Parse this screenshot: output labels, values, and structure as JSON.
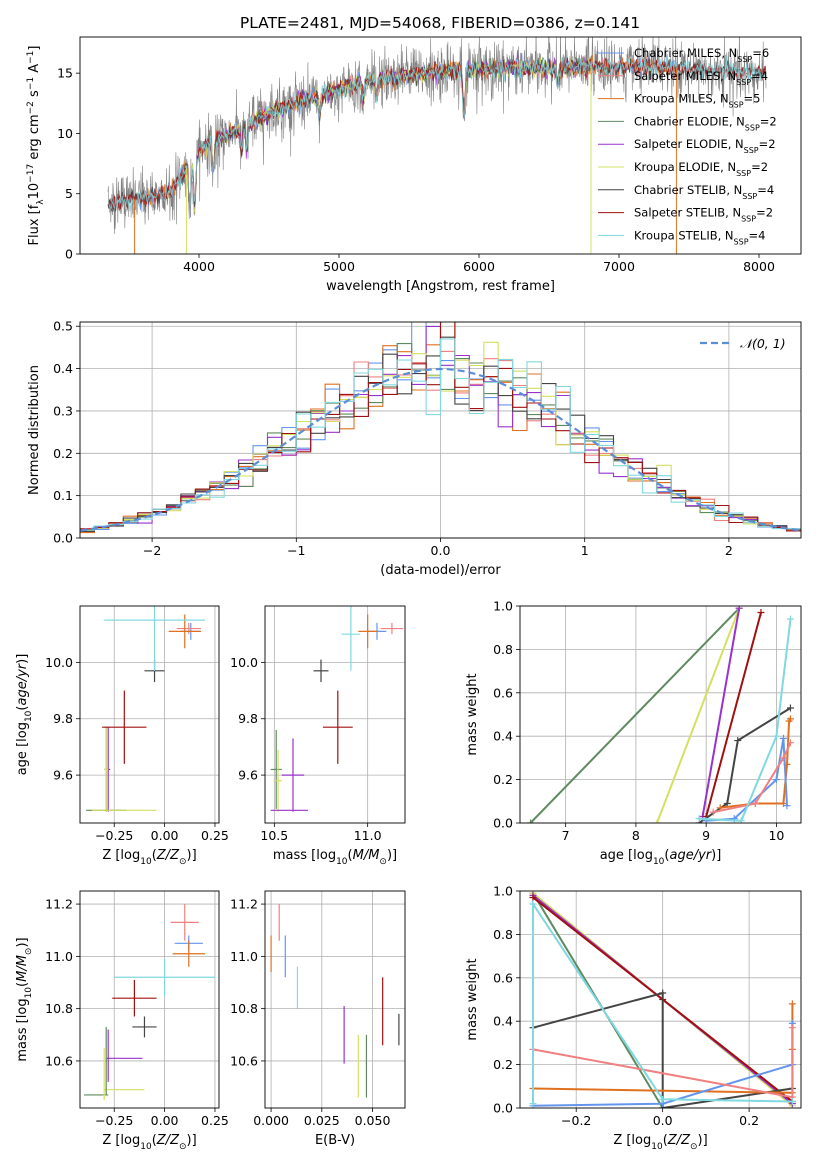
{
  "figure": {
    "suptitle": "PLATE=2481, MJD=54068, FIBERID=0386, z=0.141"
  },
  "colors": {
    "chabrier_miles": "#6495ED",
    "salpeter_miles": "#F08080",
    "kroupa_miles": "#E07020",
    "chabrier_elodie": "#5F8A5F",
    "salpeter_elodie": "#9932CC",
    "kroupa_elodie": "#D4E060",
    "chabrier_stelib": "#444444",
    "salpeter_stelib": "#A01010",
    "kroupa_stelib": "#80D8E0",
    "normal": "#5B8ED6"
  },
  "chart_data": [
    {
      "id": "spectrum",
      "type": "line",
      "xlabel": "wavelength [Angstrom, rest frame]",
      "ylabel": "Flux [f_λ 10^{-17} erg cm^{-2} s^{-1} A^{-1}]",
      "xlim": [
        3150,
        8300
      ],
      "ylim": [
        0,
        18
      ],
      "xticks": [
        4000,
        5000,
        6000,
        7000,
        8000
      ],
      "yticks": [
        0,
        5,
        10,
        15
      ],
      "grid": false,
      "legend_loc": "upper right",
      "legend": [
        {
          "key": "chabrier_miles",
          "label": "Chabrier MILES, N",
          "sub": "SSP",
          "suffix": "=6"
        },
        {
          "key": "salpeter_miles",
          "label": "Salpeter MILES, N",
          "sub": "SSP",
          "suffix": "=4"
        },
        {
          "key": "kroupa_miles",
          "label": "Kroupa MILES, N",
          "sub": "SSP",
          "suffix": "=5"
        },
        {
          "key": "chabrier_elodie",
          "label": "Chabrier ELODIE, N",
          "sub": "SSP",
          "suffix": "=2"
        },
        {
          "key": "salpeter_elodie",
          "label": "Salpeter ELODIE, N",
          "sub": "SSP",
          "suffix": "=2"
        },
        {
          "key": "kroupa_elodie",
          "label": "Kroupa ELODIE, N",
          "sub": "SSP",
          "suffix": "=2"
        },
        {
          "key": "chabrier_stelib",
          "label": "Chabrier STELIB, N",
          "sub": "SSP",
          "suffix": "=4"
        },
        {
          "key": "salpeter_stelib",
          "label": "Salpeter STELIB, N",
          "sub": "SSP",
          "suffix": "=2"
        },
        {
          "key": "kroupa_stelib",
          "label": "Kroupa STELIB, N",
          "sub": "SSP",
          "suffix": "=4"
        }
      ],
      "continuum": {
        "x": [
          3350,
          3600,
          3800,
          3950,
          4050,
          4300,
          4600,
          4900,
          5200,
          5500,
          5800,
          6200,
          6600,
          7000,
          7400,
          7800,
          8050
        ],
        "y": [
          4.2,
          4.6,
          5.2,
          7.8,
          9.0,
          10.5,
          12.2,
          13.3,
          14.4,
          14.8,
          15.2,
          15.4,
          15.5,
          15.6,
          15.4,
          15.2,
          15.0
        ]
      }
    },
    {
      "id": "residuals",
      "type": "histogram",
      "xlabel": "(data-model)/error",
      "ylabel": "Normed distribution",
      "xlim": [
        -2.5,
        2.5
      ],
      "ylim": [
        0,
        0.51
      ],
      "xticks": [
        -2,
        -1,
        0,
        1,
        2
      ],
      "yticks": [
        0.0,
        0.1,
        0.2,
        0.3,
        0.4,
        0.5
      ],
      "grid": true,
      "legend_loc": "upper right",
      "normal_label": "𝒩(0, 1)",
      "bin_width": 0.1
    },
    {
      "id": "age_vs_Z",
      "type": "errorbar",
      "xlabel": "Z [log10(Z/Z⊙)]",
      "ylabel": "age  [log10(age/yr)]",
      "xlim": [
        -0.42,
        0.27
      ],
      "ylim": [
        9.43,
        10.2
      ],
      "xticks": [
        -0.25,
        0.0,
        0.25
      ],
      "yticks": [
        9.6,
        9.8,
        10.0
      ],
      "grid": true,
      "points": [
        {
          "key": "chabrier_miles",
          "x": 0.13,
          "xerr": 0.05,
          "y": 10.11,
          "yerr": 0.03
        },
        {
          "key": "salpeter_miles",
          "x": 0.12,
          "xerr": 0.06,
          "y": 10.12,
          "yerr": 0.02
        },
        {
          "key": "kroupa_miles",
          "x": 0.1,
          "xerr": 0.08,
          "y": 10.11,
          "yerr": 0.06
        },
        {
          "key": "chabrier_elodie",
          "x": -0.29,
          "xerr": 0.01,
          "y": 9.62,
          "yerr": 0.15
        },
        {
          "key": "salpeter_elodie",
          "x": -0.28,
          "xerr": 0.01,
          "y": 9.62,
          "yerr": 0.15
        },
        {
          "key": "kroupa_elodie",
          "x": -0.29,
          "xerr": 0.01,
          "y": 9.62,
          "yerr": 0.15
        },
        {
          "key": "chabrier_stelib",
          "x": -0.05,
          "xerr": 0.05,
          "y": 9.97,
          "yerr": 0.04
        },
        {
          "key": "salpeter_stelib",
          "x": -0.2,
          "xerr": 0.11,
          "y": 9.77,
          "yerr": 0.13
        },
        {
          "key": "kroupa_stelib",
          "x": -0.05,
          "xerr": 0.25,
          "y": 10.15,
          "yerr": 0.18
        },
        {
          "key": "chabrier_elodie",
          "x": -0.29,
          "xerr": 0.1,
          "y": 9.475,
          "yerr": 0.0
        },
        {
          "key": "kroupa_elodie",
          "x": -0.2,
          "xerr": 0.16,
          "y": 9.475,
          "yerr": 0.0
        }
      ]
    },
    {
      "id": "age_vs_mass",
      "type": "errorbar",
      "xlabel": "mass [log10(M/M⊙)]",
      "ylabel": "",
      "xlim": [
        10.45,
        11.2
      ],
      "ylim": [
        9.43,
        10.2
      ],
      "xticks": [
        10.5,
        11.0
      ],
      "yticks": [
        9.6,
        9.8,
        10.0
      ],
      "grid": true,
      "points": [
        {
          "key": "chabrier_miles",
          "x": 11.05,
          "xerr": 0.05,
          "y": 10.11,
          "yerr": 0.03
        },
        {
          "key": "salpeter_miles",
          "x": 11.13,
          "xerr": 0.06,
          "y": 10.12,
          "yerr": 0.02
        },
        {
          "key": "kroupa_miles",
          "x": 11.0,
          "xerr": 0.05,
          "y": 10.11,
          "yerr": 0.06
        },
        {
          "key": "chabrier_elodie",
          "x": 10.51,
          "xerr": 0.03,
          "y": 9.62,
          "yerr": 0.14
        },
        {
          "key": "salpeter_elodie",
          "x": 10.6,
          "xerr": 0.06,
          "y": 9.6,
          "yerr": 0.13
        },
        {
          "key": "kroupa_elodie",
          "x": 10.52,
          "xerr": 0.02,
          "y": 9.58,
          "yerr": 0.11
        },
        {
          "key": "chabrier_stelib",
          "x": 10.75,
          "xerr": 0.04,
          "y": 9.97,
          "yerr": 0.04
        },
        {
          "key": "salpeter_stelib",
          "x": 10.84,
          "xerr": 0.08,
          "y": 9.77,
          "yerr": 0.13
        },
        {
          "key": "kroupa_stelib",
          "x": 10.91,
          "xerr": 0.05,
          "y": 10.1,
          "yerr": 0.13
        },
        {
          "key": "salpeter_elodie",
          "x": 10.58,
          "xerr": 0.1,
          "y": 9.475,
          "yerr": 0.0
        }
      ]
    },
    {
      "id": "weights_vs_age",
      "type": "line",
      "xlabel": "age  [log10(age/yr)]",
      "ylabel": "mass weight",
      "xlim": [
        6.35,
        10.35
      ],
      "ylim": [
        0,
        1.0
      ],
      "xticks": [
        7,
        8,
        9,
        10
      ],
      "yticks": [
        0.0,
        0.2,
        0.4,
        0.6,
        0.8,
        1.0
      ],
      "grid": true,
      "series": [
        {
          "key": "chabrier_elodie",
          "x": [
            6.5,
            9.47
          ],
          "y": [
            0.0,
            0.99
          ]
        },
        {
          "key": "kroupa_elodie",
          "x": [
            8.3,
            9.47
          ],
          "y": [
            0.0,
            0.99
          ]
        },
        {
          "key": "salpeter_elodie",
          "x": [
            8.95,
            9.47
          ],
          "y": [
            0.03,
            0.99
          ]
        },
        {
          "key": "salpeter_stelib",
          "x": [
            9.0,
            9.78
          ],
          "y": [
            0.03,
            0.97
          ]
        },
        {
          "key": "chabrier_stelib",
          "x": [
            8.9,
            9.3,
            9.45,
            10.2
          ],
          "y": [
            0.0,
            0.09,
            0.38,
            0.53
          ]
        },
        {
          "key": "kroupa_miles",
          "x": [
            9.2,
            9.7,
            10.1,
            10.15,
            10.18,
            10.2
          ],
          "y": [
            0.07,
            0.09,
            0.09,
            0.27,
            0.47,
            0.48
          ]
        },
        {
          "key": "chabrier_miles",
          "x": [
            9.0,
            9.4,
            10.0,
            10.1,
            10.15
          ],
          "y": [
            0.01,
            0.02,
            0.2,
            0.39,
            0.08
          ]
        },
        {
          "key": "salpeter_miles",
          "x": [
            9.1,
            9.7,
            10.1,
            10.2
          ],
          "y": [
            0.05,
            0.09,
            0.3,
            0.37
          ]
        },
        {
          "key": "kroupa_stelib",
          "x": [
            8.9,
            9.5,
            10.0,
            10.2
          ],
          "y": [
            0.02,
            0.01,
            0.4,
            0.94
          ]
        }
      ]
    },
    {
      "id": "mass_vs_Z",
      "type": "errorbar",
      "xlabel": "Z [log10(Z/Z⊙)]",
      "ylabel": "mass [log10(M/M⊙)]",
      "xlim": [
        -0.42,
        0.27
      ],
      "ylim": [
        10.42,
        11.25
      ],
      "xticks": [
        -0.25,
        0.0,
        0.25
      ],
      "yticks": [
        10.6,
        10.8,
        11.0,
        11.2
      ],
      "grid": true,
      "points": [
        {
          "key": "chabrier_miles",
          "x": 0.12,
          "xerr": 0.07,
          "y": 11.05,
          "yerr": 0.03
        },
        {
          "key": "salpeter_miles",
          "x": 0.1,
          "xerr": 0.07,
          "y": 11.13,
          "yerr": 0.07
        },
        {
          "key": "kroupa_miles",
          "x": 0.12,
          "xerr": 0.08,
          "y": 11.01,
          "yerr": 0.05
        },
        {
          "key": "chabrier_elodie",
          "x": -0.34,
          "xerr": 0.06,
          "y": 10.47,
          "yerr": 0.0
        },
        {
          "key": "salpeter_elodie",
          "x": -0.2,
          "xerr": 0.09,
          "y": 10.61,
          "yerr": 0.0
        },
        {
          "key": "kroupa_elodie",
          "x": -0.2,
          "xerr": 0.1,
          "y": 10.49,
          "yerr": 0.0
        },
        {
          "key": "chabrier_stelib",
          "x": -0.1,
          "xerr": 0.06,
          "y": 10.73,
          "yerr": 0.04
        },
        {
          "key": "salpeter_stelib",
          "x": -0.15,
          "xerr": 0.11,
          "y": 10.84,
          "yerr": 0.07
        },
        {
          "key": "kroupa_stelib",
          "x": 0.0,
          "xerr": 0.25,
          "y": 10.92,
          "yerr": 0.07
        },
        {
          "key": "chabrier_elodie",
          "x": -0.29,
          "xerr": 0.0,
          "y": 10.6,
          "yerr": 0.13
        },
        {
          "key": "salpeter_elodie",
          "x": -0.28,
          "xerr": 0.0,
          "y": 10.62,
          "yerr": 0.1
        },
        {
          "key": "kroupa_elodie",
          "x": -0.3,
          "xerr": 0.0,
          "y": 10.55,
          "yerr": 0.1
        }
      ]
    },
    {
      "id": "mass_vs_ebv",
      "type": "errorbar",
      "xlabel": "E(B-V)",
      "ylabel": "",
      "xlim": [
        -0.003,
        0.066
      ],
      "ylim": [
        10.42,
        11.25
      ],
      "xticks": [
        0.0,
        0.025,
        0.05
      ],
      "yticks": [
        10.6,
        10.8,
        11.0,
        11.2
      ],
      "grid": true,
      "points": [
        {
          "key": "kroupa_miles",
          "x": 0.0,
          "xerr": 0.0,
          "y": 11.01,
          "yerr": 0.07
        },
        {
          "key": "salpeter_miles",
          "x": 0.004,
          "xerr": 0.0,
          "y": 11.13,
          "yerr": 0.07
        },
        {
          "key": "chabrier_miles",
          "x": 0.007,
          "xerr": 0.0,
          "y": 11.0,
          "yerr": 0.08
        },
        {
          "key": "kroupa_stelib",
          "x": 0.013,
          "xerr": 0.0,
          "y": 10.88,
          "yerr": 0.08
        },
        {
          "key": "salpeter_elodie",
          "x": 0.036,
          "xerr": 0.0,
          "y": 10.7,
          "yerr": 0.11
        },
        {
          "key": "kroupa_elodie",
          "x": 0.043,
          "xerr": 0.0,
          "y": 10.58,
          "yerr": 0.12
        },
        {
          "key": "chabrier_elodie",
          "x": 0.047,
          "xerr": 0.0,
          "y": 10.58,
          "yerr": 0.12
        },
        {
          "key": "salpeter_stelib",
          "x": 0.055,
          "xerr": 0.0,
          "y": 10.79,
          "yerr": 0.13
        },
        {
          "key": "chabrier_stelib",
          "x": 0.063,
          "xerr": 0.0,
          "y": 10.72,
          "yerr": 0.06
        }
      ]
    },
    {
      "id": "weights_vs_Z",
      "type": "line",
      "xlabel": "Z [log10(Z/Z⊙)]",
      "ylabel": "mass weight",
      "xlim": [
        -0.33,
        0.32
      ],
      "ylim": [
        0,
        1.0
      ],
      "xticks": [
        -0.2,
        0.0,
        0.2
      ],
      "yticks": [
        0.0,
        0.2,
        0.4,
        0.6,
        0.8,
        1.0
      ],
      "grid": true,
      "series": [
        {
          "key": "chabrier_elodie",
          "x": [
            -0.3,
            0.0
          ],
          "y": [
            0.99,
            0.0
          ]
        },
        {
          "key": "kroupa_elodie",
          "x": [
            -0.3,
            0.3
          ],
          "y": [
            0.99,
            0.01
          ]
        },
        {
          "key": "salpeter_elodie",
          "x": [
            -0.3,
            0.3
          ],
          "y": [
            0.98,
            0.02
          ]
        },
        {
          "key": "salpeter_stelib",
          "x": [
            -0.3,
            0.0,
            0.3
          ],
          "y": [
            0.97,
            0.5,
            0.03
          ]
        },
        {
          "key": "chabrier_stelib",
          "x": [
            -0.3,
            0.0,
            0.0,
            0.3
          ],
          "y": [
            0.37,
            0.53,
            0.0,
            0.09
          ]
        },
        {
          "key": "kroupa_miles",
          "x": [
            -0.3,
            0.3,
            0.3,
            0.3
          ],
          "y": [
            0.09,
            0.07,
            0.27,
            0.48
          ]
        },
        {
          "key": "chabrier_miles",
          "x": [
            -0.3,
            0.0,
            0.3,
            0.3
          ],
          "y": [
            0.01,
            0.02,
            0.2,
            0.39
          ]
        },
        {
          "key": "salpeter_miles",
          "x": [
            -0.3,
            0.3,
            0.3
          ],
          "y": [
            0.27,
            0.05,
            0.37
          ]
        },
        {
          "key": "kroupa_stelib",
          "x": [
            -0.3,
            -0.3,
            0.0,
            0.3
          ],
          "y": [
            0.02,
            0.94,
            0.04,
            0.03
          ]
        }
      ]
    }
  ]
}
